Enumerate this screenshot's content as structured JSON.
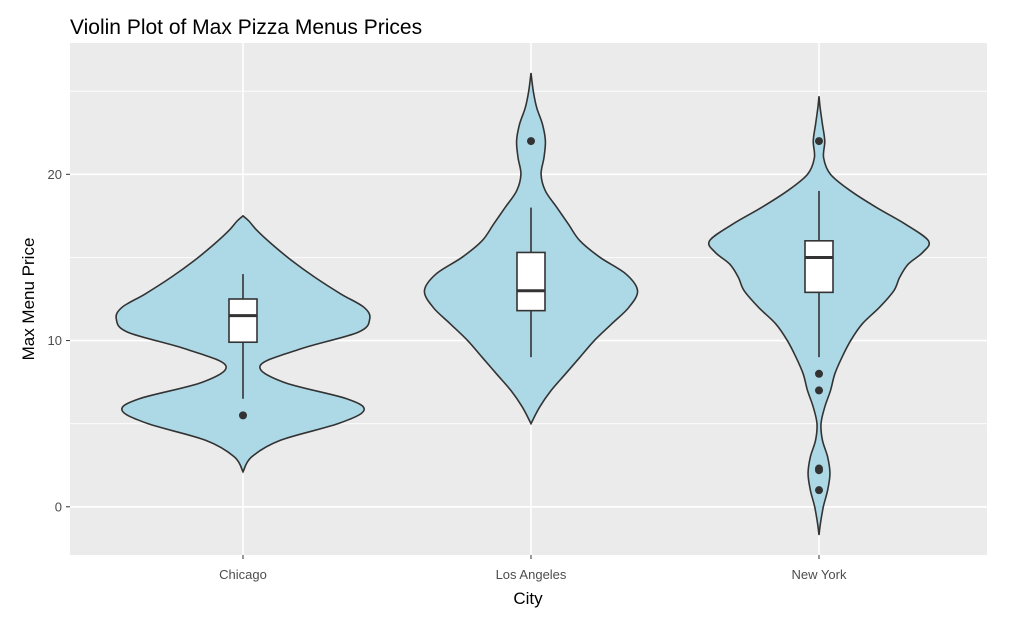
{
  "chart_data": {
    "type": "violin",
    "title": "Violin Plot of Max Pizza Menus Prices",
    "xlabel": "City",
    "ylabel": "Max Menu Price",
    "categories": [
      "Chicago",
      "Los Angeles",
      "New York"
    ],
    "ylim": [
      -2.9,
      27.9
    ],
    "yticks": [
      0,
      10,
      20
    ],
    "ytick_labels": [
      "0",
      "10",
      "20"
    ],
    "grid": true,
    "fill_color": "#add8e6",
    "panel_color": "#ebebeb",
    "violins": [
      {
        "name": "Chicago",
        "density": [
          [
            2.1,
            0
          ],
          [
            3,
            0.03
          ],
          [
            4,
            0.13
          ],
          [
            5,
            0.33
          ],
          [
            5.8,
            0.42
          ],
          [
            6.5,
            0.36
          ],
          [
            7.5,
            0.14
          ],
          [
            8.5,
            0.06
          ],
          [
            9.5,
            0.2
          ],
          [
            10.5,
            0.4
          ],
          [
            11.3,
            0.44
          ],
          [
            12,
            0.42
          ],
          [
            12.8,
            0.34
          ],
          [
            13.8,
            0.25
          ],
          [
            14.8,
            0.17
          ],
          [
            15.8,
            0.1
          ],
          [
            16.6,
            0.05
          ],
          [
            17.2,
            0.02
          ],
          [
            17.5,
            0
          ]
        ],
        "box": {
          "whisker_low": 6.5,
          "q1": 9.9,
          "median": 11.5,
          "q3": 12.5,
          "whisker_high": 14
        },
        "outliers": [
          5.5
        ]
      },
      {
        "name": "Los Angeles",
        "density": [
          [
            5,
            0
          ],
          [
            6,
            0.03
          ],
          [
            7,
            0.07
          ],
          [
            8,
            0.12
          ],
          [
            9,
            0.17
          ],
          [
            10,
            0.22
          ],
          [
            11,
            0.28
          ],
          [
            12,
            0.34
          ],
          [
            13,
            0.37
          ],
          [
            14,
            0.33
          ],
          [
            15,
            0.24
          ],
          [
            16,
            0.17
          ],
          [
            17,
            0.13
          ],
          [
            18,
            0.09
          ],
          [
            19,
            0.05
          ],
          [
            20,
            0.035
          ],
          [
            21,
            0.045
          ],
          [
            22,
            0.05
          ],
          [
            23,
            0.04
          ],
          [
            24,
            0.02
          ],
          [
            25,
            0.008
          ],
          [
            26.1,
            0
          ]
        ],
        "box": {
          "whisker_low": 9,
          "q1": 11.8,
          "median": 13,
          "q3": 15.3,
          "whisker_high": 18
        },
        "outliers": [
          22
        ]
      },
      {
        "name": "New York",
        "density": [
          [
            -1.7,
            0
          ],
          [
            -1,
            0.005
          ],
          [
            0,
            0.015
          ],
          [
            1,
            0.03
          ],
          [
            2,
            0.038
          ],
          [
            3,
            0.03
          ],
          [
            4,
            0.012
          ],
          [
            5,
            0.007
          ],
          [
            6,
            0.02
          ],
          [
            7,
            0.04
          ],
          [
            8,
            0.055
          ],
          [
            9,
            0.08
          ],
          [
            10,
            0.11
          ],
          [
            11,
            0.15
          ],
          [
            12,
            0.21
          ],
          [
            13,
            0.26
          ],
          [
            13.8,
            0.28
          ],
          [
            14.6,
            0.31
          ],
          [
            15.3,
            0.36
          ],
          [
            16,
            0.38
          ],
          [
            17,
            0.3
          ],
          [
            18,
            0.2
          ],
          [
            19,
            0.11
          ],
          [
            20,
            0.04
          ],
          [
            21,
            0.016
          ],
          [
            22,
            0.02
          ],
          [
            23,
            0.012
          ],
          [
            24,
            0.004
          ],
          [
            24.7,
            0
          ]
        ],
        "box": {
          "whisker_low": 9,
          "q1": 12.9,
          "median": 15,
          "q3": 16,
          "whisker_high": 19
        },
        "outliers": [
          22,
          8,
          7,
          2.3,
          2.2,
          1.0
        ]
      }
    ]
  }
}
